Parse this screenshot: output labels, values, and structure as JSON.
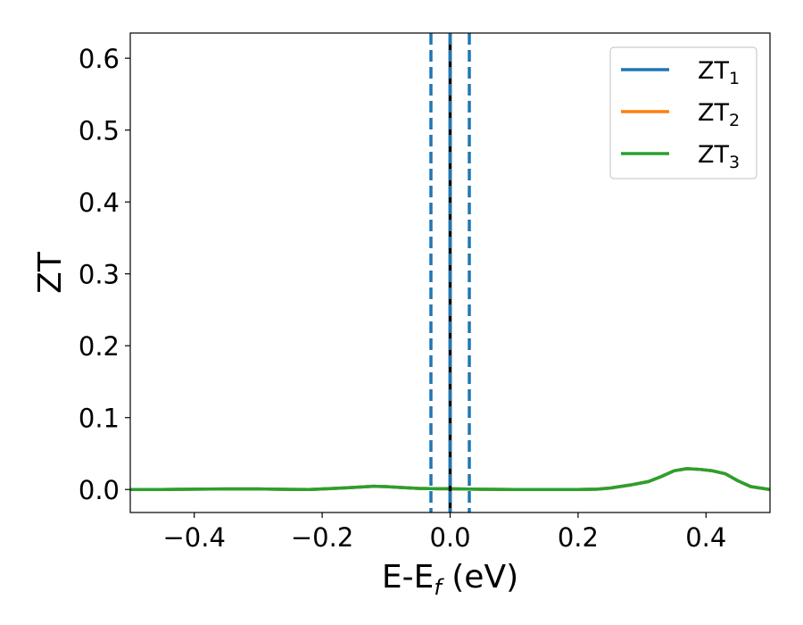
{
  "chart_data": {
    "type": "line",
    "title": "",
    "xlabel_main": "E-E",
    "xlabel_sub": "f",
    "xlabel_unit": " (eV)",
    "ylabel": "ZT",
    "xlim": [
      -0.5,
      0.5
    ],
    "ylim": [
      -0.032,
      0.635
    ],
    "grid": false,
    "legend_position": "top-right",
    "x_ticks": [
      -0.4,
      -0.2,
      0.0,
      0.2,
      0.4
    ],
    "x_tick_labels": [
      "−0.4",
      "−0.2",
      "0.0",
      "0.2",
      "0.4"
    ],
    "y_ticks": [
      0.0,
      0.1,
      0.2,
      0.3,
      0.4,
      0.5,
      0.6
    ],
    "y_tick_labels": [
      "0.0",
      "0.1",
      "0.2",
      "0.3",
      "0.4",
      "0.5",
      "0.6"
    ],
    "series": [
      {
        "name": "ZT",
        "name_sub": "1",
        "color": "#1f77b4",
        "x": [
          -0.5,
          -0.45,
          -0.4,
          -0.35,
          -0.3,
          -0.25,
          -0.22,
          -0.18,
          -0.15,
          -0.12,
          -0.1,
          -0.08,
          -0.05,
          -0.02,
          0.0,
          0.05,
          0.1,
          0.15,
          0.2,
          0.23,
          0.25,
          0.28,
          0.31,
          0.33,
          0.35,
          0.37,
          0.39,
          0.41,
          0.43,
          0.45,
          0.47,
          0.5
        ],
        "y": [
          0.0,
          0.0,
          0.0005,
          0.0008,
          0.0008,
          0.0002,
          0.0,
          0.0015,
          0.003,
          0.0045,
          0.004,
          0.003,
          0.0015,
          0.001,
          0.001,
          0.0003,
          0.0,
          0.0,
          0.0,
          0.0005,
          0.002,
          0.006,
          0.011,
          0.018,
          0.026,
          0.029,
          0.028,
          0.026,
          0.022,
          0.012,
          0.004,
          0.0
        ]
      },
      {
        "name": "ZT",
        "name_sub": "2",
        "color": "#ff7f0e",
        "x": [
          -0.5,
          -0.45,
          -0.4,
          -0.35,
          -0.3,
          -0.25,
          -0.22,
          -0.18,
          -0.15,
          -0.12,
          -0.1,
          -0.08,
          -0.05,
          -0.02,
          0.0,
          0.05,
          0.1,
          0.15,
          0.2,
          0.23,
          0.25,
          0.28,
          0.31,
          0.33,
          0.35,
          0.37,
          0.39,
          0.41,
          0.43,
          0.45,
          0.47,
          0.5
        ],
        "y": [
          0.0,
          0.0,
          0.0005,
          0.0008,
          0.0008,
          0.0002,
          0.0,
          0.0015,
          0.003,
          0.0045,
          0.004,
          0.003,
          0.0015,
          0.001,
          0.001,
          0.0003,
          0.0,
          0.0,
          0.0,
          0.0005,
          0.002,
          0.006,
          0.011,
          0.018,
          0.026,
          0.029,
          0.028,
          0.026,
          0.022,
          0.012,
          0.004,
          0.0
        ]
      },
      {
        "name": "ZT",
        "name_sub": "3",
        "color": "#2ca02c",
        "x": [
          -0.5,
          -0.45,
          -0.4,
          -0.35,
          -0.3,
          -0.25,
          -0.22,
          -0.18,
          -0.15,
          -0.12,
          -0.1,
          -0.08,
          -0.05,
          -0.02,
          0.0,
          0.05,
          0.1,
          0.15,
          0.2,
          0.23,
          0.25,
          0.28,
          0.31,
          0.33,
          0.35,
          0.37,
          0.39,
          0.41,
          0.43,
          0.45,
          0.47,
          0.5
        ],
        "y": [
          0.0,
          0.0,
          0.0005,
          0.0008,
          0.0008,
          0.0002,
          0.0,
          0.0015,
          0.003,
          0.0045,
          0.004,
          0.003,
          0.0015,
          0.001,
          0.001,
          0.0003,
          0.0,
          0.0,
          0.0,
          0.0005,
          0.002,
          0.006,
          0.011,
          0.018,
          0.026,
          0.029,
          0.028,
          0.026,
          0.022,
          0.012,
          0.004,
          0.0
        ]
      }
    ],
    "vertical_lines": [
      {
        "x": -0.03,
        "color": "#1f77b4",
        "style": "dashed"
      },
      {
        "x": 0.0,
        "color": "#000000",
        "style": "solid"
      },
      {
        "x": 0.0,
        "color": "#1f77b4",
        "style": "dashed"
      },
      {
        "x": 0.03,
        "color": "#1f77b4",
        "style": "dashed"
      }
    ]
  }
}
